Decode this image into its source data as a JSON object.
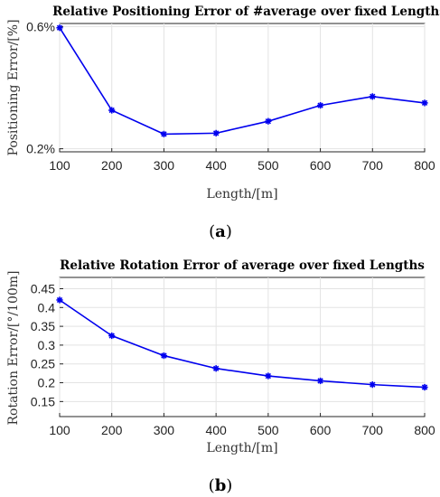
{
  "chart_data": [
    {
      "type": "line",
      "title": "Relative Positioning Error of #average over fixed Lengths",
      "xlabel": "Length/[m]",
      "ylabel": "Positioning Error/[%]",
      "x": [
        100,
        200,
        300,
        400,
        500,
        600,
        700,
        800
      ],
      "series": [
        {
          "values": [
            0.596,
            0.326,
            0.248,
            0.251,
            0.29,
            0.342,
            0.371,
            0.35
          ],
          "color": "#0000ee",
          "marker": "asterisk"
        }
      ],
      "xlim": [
        100,
        800
      ],
      "ylim": [
        0.19,
        0.61
      ],
      "xticks": [
        100,
        200,
        300,
        400,
        500,
        600,
        700,
        800
      ],
      "yticks": [
        0.2,
        0.6
      ],
      "ytick_labels": [
        "0.2%",
        "0.6%"
      ],
      "grid": true,
      "caption_open": "(",
      "caption_letter": "a",
      "caption_close": ")"
    },
    {
      "type": "line",
      "title": "Relative Rotation Error of average over fixed Lengths",
      "xlabel": "Length/[m]",
      "ylabel": "Rotation Error/[°/100m]",
      "x": [
        100,
        200,
        300,
        400,
        500,
        600,
        700,
        800
      ],
      "series": [
        {
          "values": [
            0.42,
            0.325,
            0.272,
            0.238,
            0.218,
            0.205,
            0.195,
            0.188
          ],
          "color": "#0000ee",
          "marker": "asterisk"
        }
      ],
      "xlim": [
        100,
        800
      ],
      "ylim": [
        0.11,
        0.48
      ],
      "xticks": [
        100,
        200,
        300,
        400,
        500,
        600,
        700,
        800
      ],
      "yticks": [
        0.15,
        0.2,
        0.25,
        0.3,
        0.35,
        0.4,
        0.45
      ],
      "ytick_labels": [
        "0.15",
        "0.2",
        "0.25",
        "0.3",
        "0.35",
        "0.4",
        "0.45"
      ],
      "grid": true,
      "caption_open": "(",
      "caption_letter": "b",
      "caption_close": ")"
    }
  ]
}
